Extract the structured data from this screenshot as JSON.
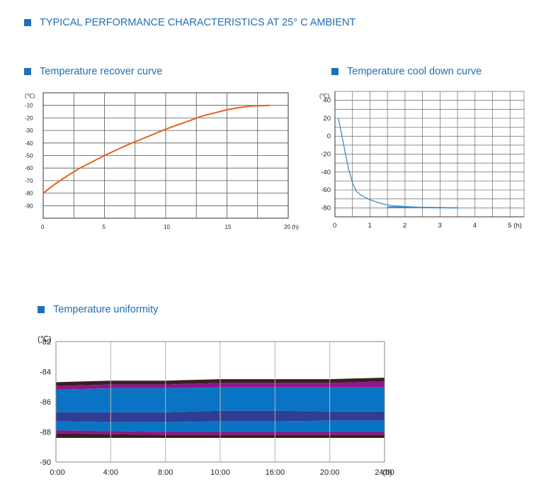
{
  "headings": {
    "main": "TYPICAL PERFORMANCE CHARACTERISTICS AT 25° C AMBIENT"
  },
  "colors": {
    "accent": "#1f6fb5",
    "recover_line": "#e8601c",
    "cool_line": "#2d86c8"
  },
  "chart_data": [
    {
      "type": "line",
      "title": "Temperature recover curve",
      "ylabel": "(℃)",
      "xlabel": "(h)",
      "xlim": [
        0,
        20
      ],
      "ylim": [
        -100,
        0
      ],
      "y_ticks": [
        -10,
        -20,
        -30,
        -40,
        -50,
        -60,
        -70,
        -80,
        -90
      ],
      "x_ticks": [
        0,
        5,
        10,
        15,
        20
      ],
      "grid": true,
      "series": [
        {
          "x": [
            0,
            1,
            2,
            3,
            4,
            5,
            6,
            7,
            8,
            9,
            10,
            11,
            12,
            13,
            14,
            15,
            16,
            17,
            18.5
          ],
          "y": [
            -80,
            -72.5,
            -66,
            -60,
            -55,
            -50,
            -45.5,
            -41,
            -37,
            -33,
            -29,
            -25.5,
            -22,
            -18.5,
            -16,
            -13.5,
            -11.8,
            -10.5,
            -10
          ]
        }
      ]
    },
    {
      "type": "line",
      "title": "Temperature cool down curve",
      "ylabel": "(℃)",
      "xlabel": "(h)",
      "xlim": [
        0,
        5.4
      ],
      "ylim": [
        -90,
        50
      ],
      "y_ticks": [
        40,
        20,
        0,
        -20,
        -40,
        -60,
        -80
      ],
      "x_ticks": [
        0,
        1,
        2,
        3,
        4,
        5
      ],
      "grid": true,
      "series": [
        {
          "x": [
            0.1,
            0.2,
            0.3,
            0.4,
            0.5,
            0.6,
            0.75,
            1.0,
            1.3,
            1.6,
            2.0,
            2.5,
            3.0,
            3.5
          ],
          "y": [
            20,
            0,
            -20,
            -38,
            -52,
            -61,
            -66,
            -71,
            -75,
            -77.5,
            -78.5,
            -79.5,
            -80,
            -80
          ]
        },
        {
          "x": [
            1.5,
            3.5
          ],
          "y": [
            -79,
            -80
          ]
        }
      ]
    },
    {
      "type": "area",
      "title": "Temperature uniformity",
      "ylabel": "(℃)",
      "xlabel": "(h)",
      "ylim": [
        -90,
        -82
      ],
      "y_ticks": [
        -82,
        -84,
        -86,
        -88,
        -90
      ],
      "categories": [
        "0:00",
        "4:00",
        "8:00",
        "10:00",
        "16:00",
        "20:00",
        "24:00"
      ],
      "grid": true,
      "bands": [
        {
          "color": "#3a1f1f",
          "top": [
            -84.7,
            -84.6,
            -84.6,
            -84.5,
            -84.5,
            -84.5,
            -84.4
          ],
          "bottom": [
            -84.95,
            -84.85,
            -84.85,
            -84.75,
            -84.75,
            -84.75,
            -84.65
          ]
        },
        {
          "color": "#8e168a",
          "top": [
            -84.95,
            -84.85,
            -84.85,
            -84.75,
            -84.75,
            -84.75,
            -84.65
          ],
          "bottom": [
            -85.2,
            -85.1,
            -85.1,
            -85.05,
            -85.05,
            -85.05,
            -85.05
          ]
        },
        {
          "color": "#0a74c4",
          "top": [
            -85.2,
            -85.1,
            -85.1,
            -85.05,
            -85.05,
            -85.05,
            -85.05
          ],
          "bottom": [
            -86.7,
            -86.7,
            -86.7,
            -86.6,
            -86.6,
            -86.65,
            -86.65
          ]
        },
        {
          "color": "#2f3d94",
          "top": [
            -86.7,
            -86.7,
            -86.7,
            -86.6,
            -86.6,
            -86.65,
            -86.65
          ],
          "bottom": [
            -87.3,
            -87.35,
            -87.35,
            -87.3,
            -87.3,
            -87.25,
            -87.25
          ]
        },
        {
          "color": "#0a74c4",
          "top": [
            -87.3,
            -87.35,
            -87.35,
            -87.3,
            -87.3,
            -87.25,
            -87.25
          ],
          "bottom": [
            -87.9,
            -87.95,
            -88.0,
            -88.0,
            -88.0,
            -88.0,
            -88.0
          ]
        },
        {
          "color": "#8e168a",
          "top": [
            -87.9,
            -87.95,
            -88.0,
            -88.0,
            -88.0,
            -88.0,
            -88.0
          ],
          "bottom": [
            -88.1,
            -88.15,
            -88.2,
            -88.2,
            -88.2,
            -88.2,
            -88.2
          ]
        },
        {
          "color": "#3a1f1f",
          "top": [
            -88.1,
            -88.15,
            -88.2,
            -88.2,
            -88.2,
            -88.2,
            -88.2
          ],
          "bottom": [
            -88.4,
            -88.4,
            -88.4,
            -88.4,
            -88.4,
            -88.4,
            -88.4
          ]
        }
      ]
    }
  ]
}
